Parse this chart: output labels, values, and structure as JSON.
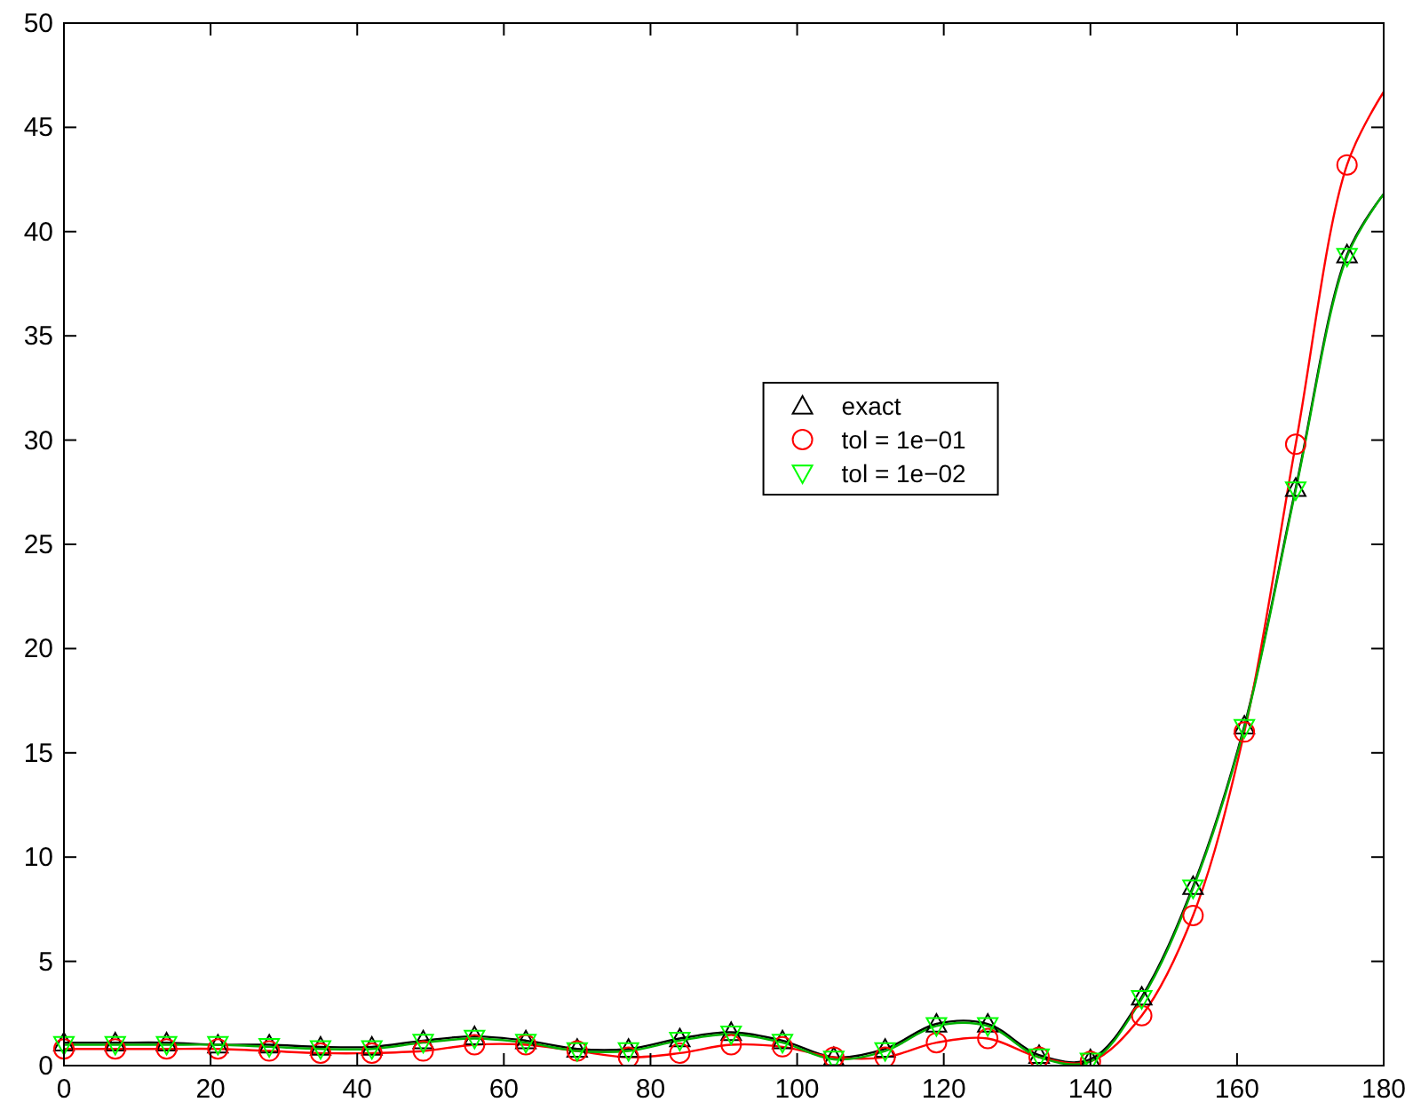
{
  "chart_data": {
    "type": "line",
    "x": [
      0,
      7,
      14,
      21,
      28,
      35,
      42,
      49,
      56,
      63,
      70,
      77,
      84,
      91,
      98,
      105,
      112,
      119,
      126,
      133,
      140,
      147,
      154,
      161,
      168,
      175
    ],
    "xlim": [
      0,
      180
    ],
    "xticks": [
      0,
      20,
      40,
      60,
      80,
      100,
      120,
      140,
      160,
      180
    ],
    "ylim": [
      0,
      50
    ],
    "yticks": [
      0,
      5,
      10,
      15,
      20,
      25,
      30,
      35,
      40,
      45,
      50
    ],
    "grid": false,
    "legend": "center",
    "series": [
      {
        "marker": "none",
        "color": "#000000",
        "x": [
          0,
          7,
          14,
          21,
          28,
          35,
          42,
          49,
          56,
          63,
          70,
          77,
          84,
          91,
          98,
          105,
          112,
          119,
          126,
          133,
          140,
          147,
          154,
          161,
          168,
          175,
          180
        ],
        "values": [
          1.1,
          1.1,
          1.1,
          1.0,
          1.0,
          0.9,
          0.9,
          1.2,
          1.4,
          1.2,
          0.8,
          0.8,
          1.3,
          1.6,
          1.2,
          0.4,
          0.8,
          2.0,
          2.0,
          0.5,
          0.3,
          3.3,
          8.6,
          16.3,
          27.7,
          38.9,
          41.8
        ]
      },
      {
        "marker": "none",
        "color": "#ff0000",
        "x": [
          0,
          7,
          14,
          21,
          28,
          35,
          42,
          49,
          56,
          63,
          70,
          77,
          84,
          91,
          98,
          105,
          112,
          119,
          126,
          133,
          140,
          147,
          154,
          161,
          168,
          175,
          180
        ],
        "values": [
          0.8,
          0.8,
          0.8,
          0.8,
          0.7,
          0.6,
          0.6,
          0.7,
          1.0,
          1.0,
          0.7,
          0.4,
          0.6,
          1.0,
          0.9,
          0.4,
          0.4,
          1.1,
          1.3,
          0.4,
          0.2,
          2.4,
          7.2,
          16.0,
          29.8,
          43.2,
          46.7
        ]
      },
      {
        "marker": "none",
        "color": "#00b000",
        "x": [
          0,
          7,
          14,
          21,
          28,
          35,
          42,
          49,
          56,
          63,
          70,
          77,
          84,
          91,
          98,
          105,
          112,
          119,
          126,
          133,
          140,
          147,
          154,
          161,
          168,
          175,
          180
        ],
        "values": [
          1.0,
          1.0,
          1.0,
          1.0,
          0.9,
          0.8,
          0.8,
          1.1,
          1.3,
          1.1,
          0.7,
          0.7,
          1.2,
          1.5,
          1.1,
          0.3,
          0.7,
          1.9,
          1.9,
          0.4,
          0.2,
          3.2,
          8.5,
          16.2,
          27.6,
          38.8,
          41.8
        ]
      },
      {
        "type": "scatter",
        "marker": "triangle",
        "name": "exact",
        "color": "#000000",
        "values": [
          1.1,
          1.1,
          1.1,
          1.0,
          1.0,
          0.9,
          0.9,
          1.2,
          1.4,
          1.2,
          0.8,
          0.8,
          1.3,
          1.6,
          1.2,
          0.4,
          0.8,
          2.0,
          2.0,
          0.5,
          0.3,
          3.3,
          8.6,
          16.3,
          27.7,
          38.9
        ]
      },
      {
        "type": "scatter",
        "marker": "circle",
        "name": "tol = 1e−01",
        "color": "#ff0000",
        "values": [
          0.8,
          0.8,
          0.8,
          0.8,
          0.7,
          0.6,
          0.6,
          0.7,
          1.0,
          1.0,
          0.7,
          0.4,
          0.6,
          1.0,
          0.9,
          0.4,
          0.4,
          1.1,
          1.3,
          0.4,
          0.2,
          2.4,
          7.2,
          16.0,
          29.8,
          43.2
        ]
      },
      {
        "type": "scatter",
        "marker": "triangle-down",
        "name": "tol = 1e−02",
        "color": "#00ff00",
        "values": [
          1.0,
          1.0,
          1.0,
          1.0,
          0.9,
          0.8,
          0.8,
          1.1,
          1.3,
          1.1,
          0.7,
          0.7,
          1.2,
          1.5,
          1.1,
          0.3,
          0.7,
          1.9,
          1.9,
          0.4,
          0.2,
          3.2,
          8.5,
          16.2,
          27.6,
          38.8
        ]
      }
    ]
  }
}
